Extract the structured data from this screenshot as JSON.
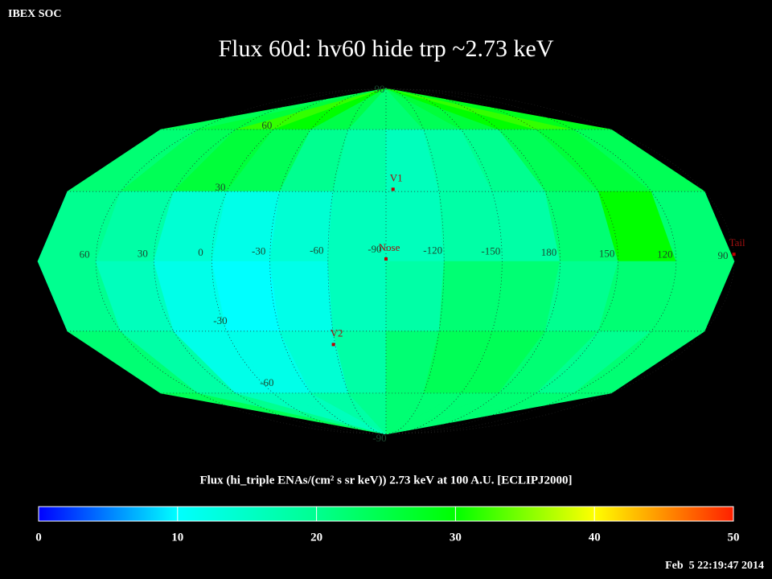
{
  "chart_data": {
    "type": "heatmap",
    "projection": "mollweide",
    "header": "IBEX SOC",
    "title": "Flux   60d: hv60 hide trp ~2.73 keV",
    "colorbar_label": "Flux (hi_triple ENAs/(cm² s sr keV))  2.73 keV at 100 A.U. [ECLIPJ2000]",
    "timestamp": "Feb  5 22:19:47 2014",
    "center_lon": -90,
    "lon_ticks": [
      60,
      30,
      0,
      -30,
      -60,
      -90,
      -120,
      -150,
      180,
      150,
      120,
      90
    ],
    "lat_ticks": [
      90,
      60,
      30,
      -30,
      -60,
      -90
    ],
    "grid": true,
    "values": [
      [
        24,
        26,
        32,
        30,
        25,
        22,
        22,
        24,
        26,
        30,
        32,
        28
      ],
      [
        22,
        24,
        26,
        24,
        20,
        18,
        16,
        18,
        20,
        24,
        26,
        24
      ],
      [
        20,
        18,
        14,
        12,
        14,
        16,
        16,
        18,
        18,
        22,
        30,
        22
      ],
      [
        20,
        16,
        12,
        10,
        12,
        16,
        18,
        22,
        22,
        20,
        22,
        22
      ],
      [
        22,
        18,
        12,
        12,
        14,
        18,
        22,
        24,
        24,
        22,
        20,
        22
      ],
      [
        24,
        20,
        16,
        16,
        18,
        20,
        22,
        22,
        22,
        22,
        22,
        22
      ]
    ],
    "zlim": [
      0,
      50
    ],
    "zticks": [
      0,
      10,
      20,
      30,
      40,
      50
    ],
    "colorscale": [
      "#0000ff",
      "#00ffff",
      "#00ff90",
      "#00ff00",
      "#ffff00",
      "#ff2000"
    ],
    "markers": [
      {
        "label": "V1",
        "lon": -94,
        "lat": 31
      },
      {
        "label": "Nose",
        "lon": -90,
        "lat": 1
      },
      {
        "label": "V2",
        "lon": -59,
        "lat": -36
      },
      {
        "label": "Tail",
        "lon": 90,
        "lat": 3
      }
    ]
  }
}
